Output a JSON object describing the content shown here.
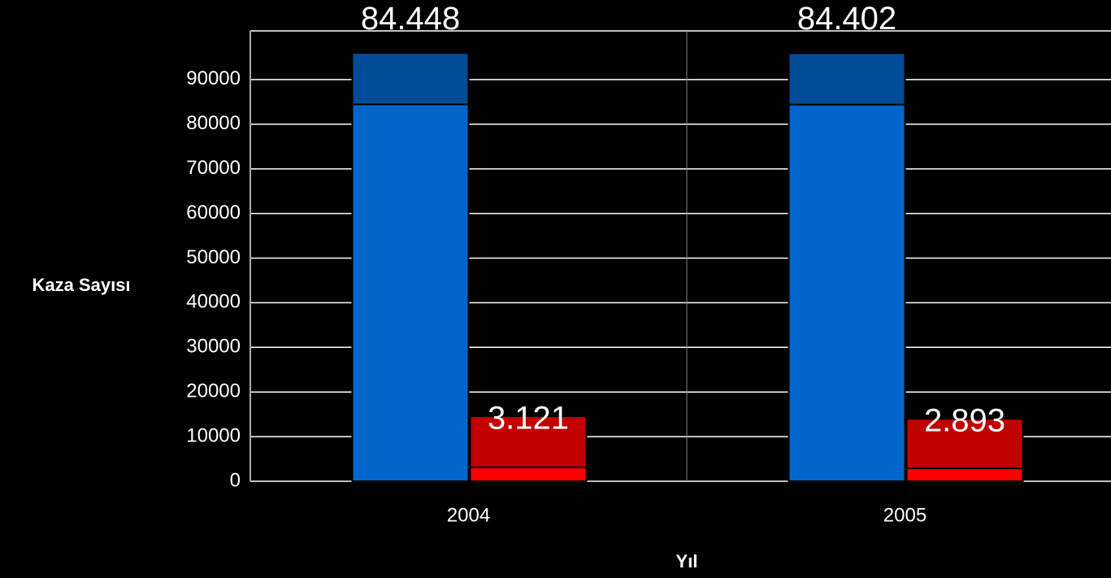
{
  "chart_data": {
    "type": "bar",
    "x_label": "Yıl",
    "y_label": "Kaza Sayısı",
    "categories": [
      "2004",
      "2005"
    ],
    "stacks": [
      [
        {
          "color": "#0066cc",
          "values": [
            84448,
            84402
          ],
          "value_labels": [
            "84.448",
            "84.402"
          ]
        },
        {
          "color": "#004c99",
          "values": [
            11500,
            11500
          ]
        }
      ],
      [
        {
          "color": "#ff0000",
          "values": [
            3121,
            2893
          ],
          "value_labels": [
            "3.121",
            "2.893"
          ]
        },
        {
          "color": "#c00000",
          "values": [
            11450,
            11100
          ]
        }
      ]
    ],
    "ylim": [
      0,
      100000
    ],
    "yticks": [
      0,
      10000,
      20000,
      30000,
      40000,
      50000,
      60000,
      70000,
      80000,
      90000
    ],
    "grid": true
  }
}
